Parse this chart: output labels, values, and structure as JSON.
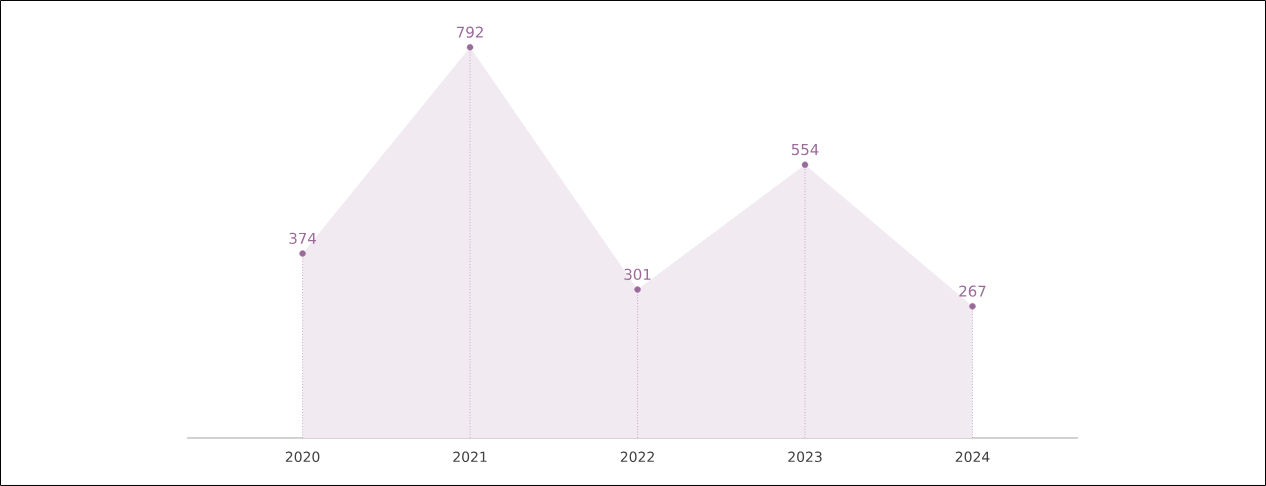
{
  "chart_data": {
    "type": "area",
    "categories": [
      "2020",
      "2021",
      "2022",
      "2023",
      "2024"
    ],
    "values": [
      374,
      792,
      301,
      554,
      267
    ],
    "color": "#9b6a9b",
    "marker": "circle",
    "data_labels": true
  }
}
